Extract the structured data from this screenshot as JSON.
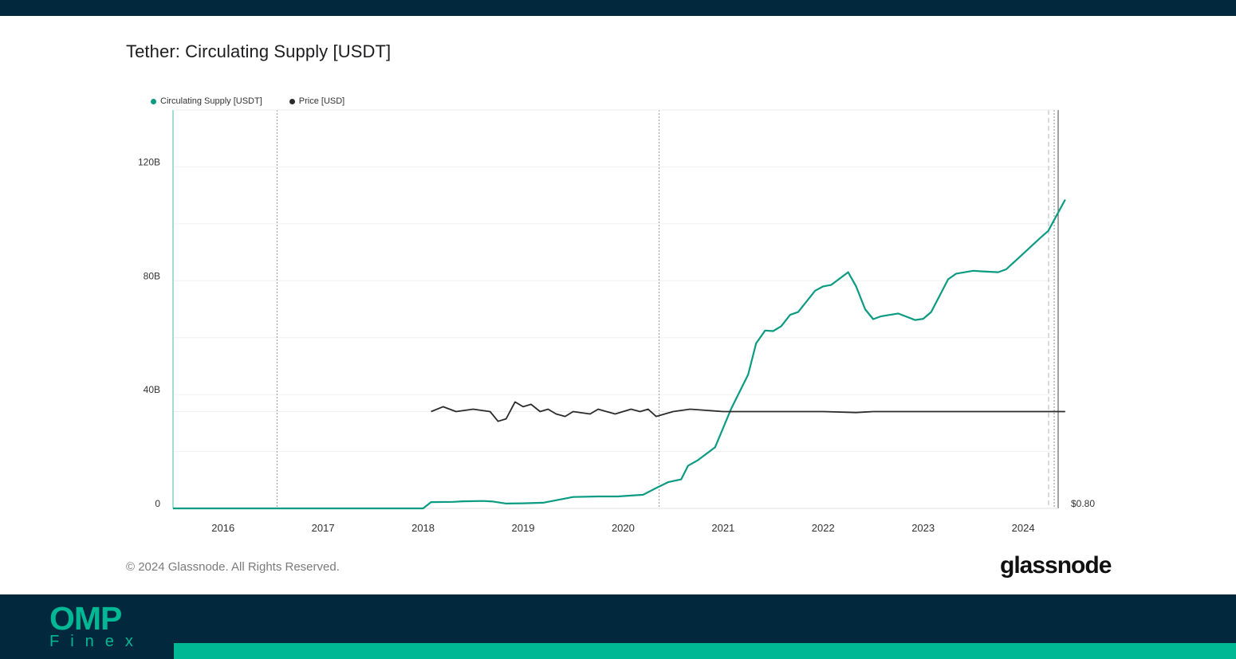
{
  "title": "Tether: Circulating Supply [USDT]",
  "legend": [
    {
      "label": "Circulating Supply [USDT]",
      "color": "#0a9b82"
    },
    {
      "label": "Price [USD]",
      "color": "#2b2b2b"
    }
  ],
  "footer": {
    "copyright": "© 2024 Glassnode. All Rights Reserved.",
    "brand": "glassnode"
  },
  "company_logo": {
    "line1": "OMP",
    "line2": "Finex"
  },
  "colors": {
    "band": "#01283d",
    "accent": "#00b894",
    "supply": "#0a9b82",
    "price": "#2b2b2b"
  },
  "chart_data": {
    "type": "line",
    "title": "Tether: Circulating Supply [USDT]",
    "xlim": [
      2015.5,
      2024.35
    ],
    "x_ticks": [
      2016,
      2017,
      2018,
      2019,
      2020,
      2021,
      2022,
      2023,
      2024
    ],
    "y_left": {
      "ticks": [
        0,
        40,
        80,
        120
      ],
      "tick_labels": [
        "0",
        "40B",
        "80B",
        "120B"
      ],
      "ylim": [
        0,
        140
      ],
      "unit": "B"
    },
    "y_right": {
      "tick_labels": [
        "$0.80"
      ]
    },
    "grid": true,
    "legend_position": "top-left",
    "series": [
      {
        "name": "Circulating Supply [USDT]",
        "axis": "left",
        "points": [
          [
            2015.5,
            0
          ],
          [
            2018.0,
            0
          ],
          [
            2018.08,
            2.2
          ],
          [
            2018.3,
            2.3
          ],
          [
            2018.4,
            2.5
          ],
          [
            2018.6,
            2.6
          ],
          [
            2018.7,
            2.4
          ],
          [
            2018.83,
            1.7
          ],
          [
            2019.0,
            1.8
          ],
          [
            2019.2,
            2.0
          ],
          [
            2019.5,
            4.0
          ],
          [
            2019.75,
            4.2
          ],
          [
            2019.95,
            4.2
          ],
          [
            2020.2,
            4.8
          ],
          [
            2020.35,
            7.5
          ],
          [
            2020.45,
            9.2
          ],
          [
            2020.58,
            10.2
          ],
          [
            2020.65,
            15.0
          ],
          [
            2020.75,
            17.0
          ],
          [
            2020.92,
            21.5
          ],
          [
            2021.08,
            35.0
          ],
          [
            2021.25,
            47.0
          ],
          [
            2021.33,
            58.0
          ],
          [
            2021.42,
            62.5
          ],
          [
            2021.5,
            62.3
          ],
          [
            2021.58,
            64.0
          ],
          [
            2021.67,
            68.0
          ],
          [
            2021.75,
            69.0
          ],
          [
            2021.92,
            76.5
          ],
          [
            2022.0,
            78.0
          ],
          [
            2022.08,
            78.5
          ],
          [
            2022.25,
            83.0
          ],
          [
            2022.33,
            78.0
          ],
          [
            2022.42,
            70.0
          ],
          [
            2022.5,
            66.5
          ],
          [
            2022.58,
            67.5
          ],
          [
            2022.75,
            68.5
          ],
          [
            2022.92,
            66.2
          ],
          [
            2023.0,
            66.6
          ],
          [
            2023.08,
            69.0
          ],
          [
            2023.25,
            80.5
          ],
          [
            2023.33,
            82.5
          ],
          [
            2023.5,
            83.5
          ],
          [
            2023.58,
            83.3
          ],
          [
            2023.75,
            83.0
          ],
          [
            2023.83,
            84.0
          ],
          [
            2024.0,
            89.5
          ],
          [
            2024.17,
            95.0
          ],
          [
            2024.25,
            97.5
          ],
          [
            2024.42,
            108.5
          ]
        ]
      },
      {
        "name": "Price [USD]",
        "axis": "right",
        "points": [
          [
            2018.08,
            1.0
          ],
          [
            2018.2,
            1.01
          ],
          [
            2018.33,
            1.0
          ],
          [
            2018.5,
            1.005
          ],
          [
            2018.67,
            1.0
          ],
          [
            2018.75,
            0.98
          ],
          [
            2018.83,
            0.985
          ],
          [
            2018.92,
            1.02
          ],
          [
            2019.0,
            1.01
          ],
          [
            2019.08,
            1.015
          ],
          [
            2019.17,
            1.0
          ],
          [
            2019.25,
            1.005
          ],
          [
            2019.33,
            0.995
          ],
          [
            2019.42,
            0.99
          ],
          [
            2019.5,
            1.0
          ],
          [
            2019.67,
            0.995
          ],
          [
            2019.75,
            1.005
          ],
          [
            2019.92,
            0.995
          ],
          [
            2020.0,
            1.0
          ],
          [
            2020.08,
            1.005
          ],
          [
            2020.17,
            1.0
          ],
          [
            2020.25,
            1.005
          ],
          [
            2020.33,
            0.99
          ],
          [
            2020.5,
            1.0
          ],
          [
            2020.67,
            1.005
          ],
          [
            2021.0,
            1.0
          ],
          [
            2022.0,
            1.0
          ],
          [
            2022.33,
            0.998
          ],
          [
            2022.5,
            1.0
          ],
          [
            2023.0,
            1.0
          ],
          [
            2024.0,
            1.0
          ],
          [
            2024.42,
            1.0
          ]
        ]
      }
    ]
  }
}
